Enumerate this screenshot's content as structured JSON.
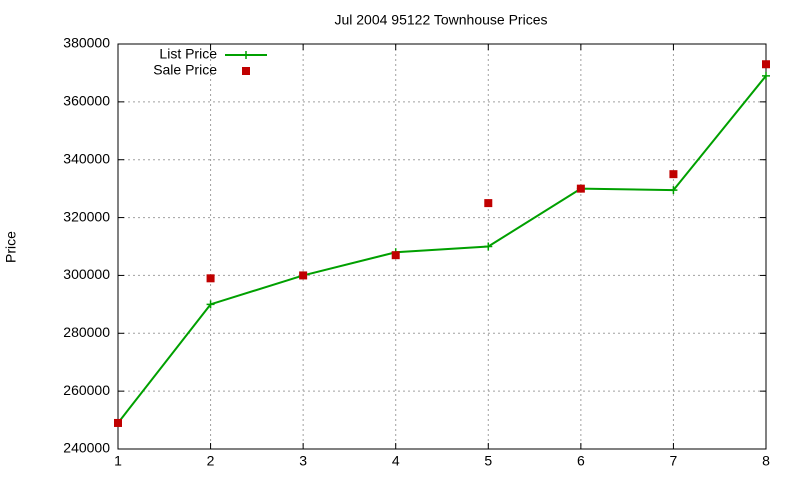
{
  "chart_data": {
    "type": "line",
    "title": "Jul 2004 95122 Townhouse Prices",
    "y_label": "Price",
    "x": [
      1,
      2,
      3,
      4,
      5,
      6,
      7,
      8
    ],
    "series": [
      {
        "name": "List Price",
        "color": "#00a000",
        "style": "lines+markers",
        "values": [
          249000,
          290000,
          300000,
          308000,
          310000,
          330000,
          329500,
          369000
        ]
      },
      {
        "name": "Sale Price",
        "color": "#c00000",
        "style": "markers",
        "values": [
          249000,
          299000,
          300000,
          307000,
          325000,
          330000,
          335000,
          373000
        ]
      }
    ],
    "xlim": [
      1,
      8
    ],
    "xticks": [
      1,
      2,
      3,
      4,
      5,
      6,
      7,
      8
    ],
    "ylim": [
      240000,
      380000
    ],
    "yticks": [
      240000,
      260000,
      280000,
      300000,
      320000,
      340000,
      360000,
      380000
    ],
    "grid": true,
    "legend": "top-left"
  }
}
